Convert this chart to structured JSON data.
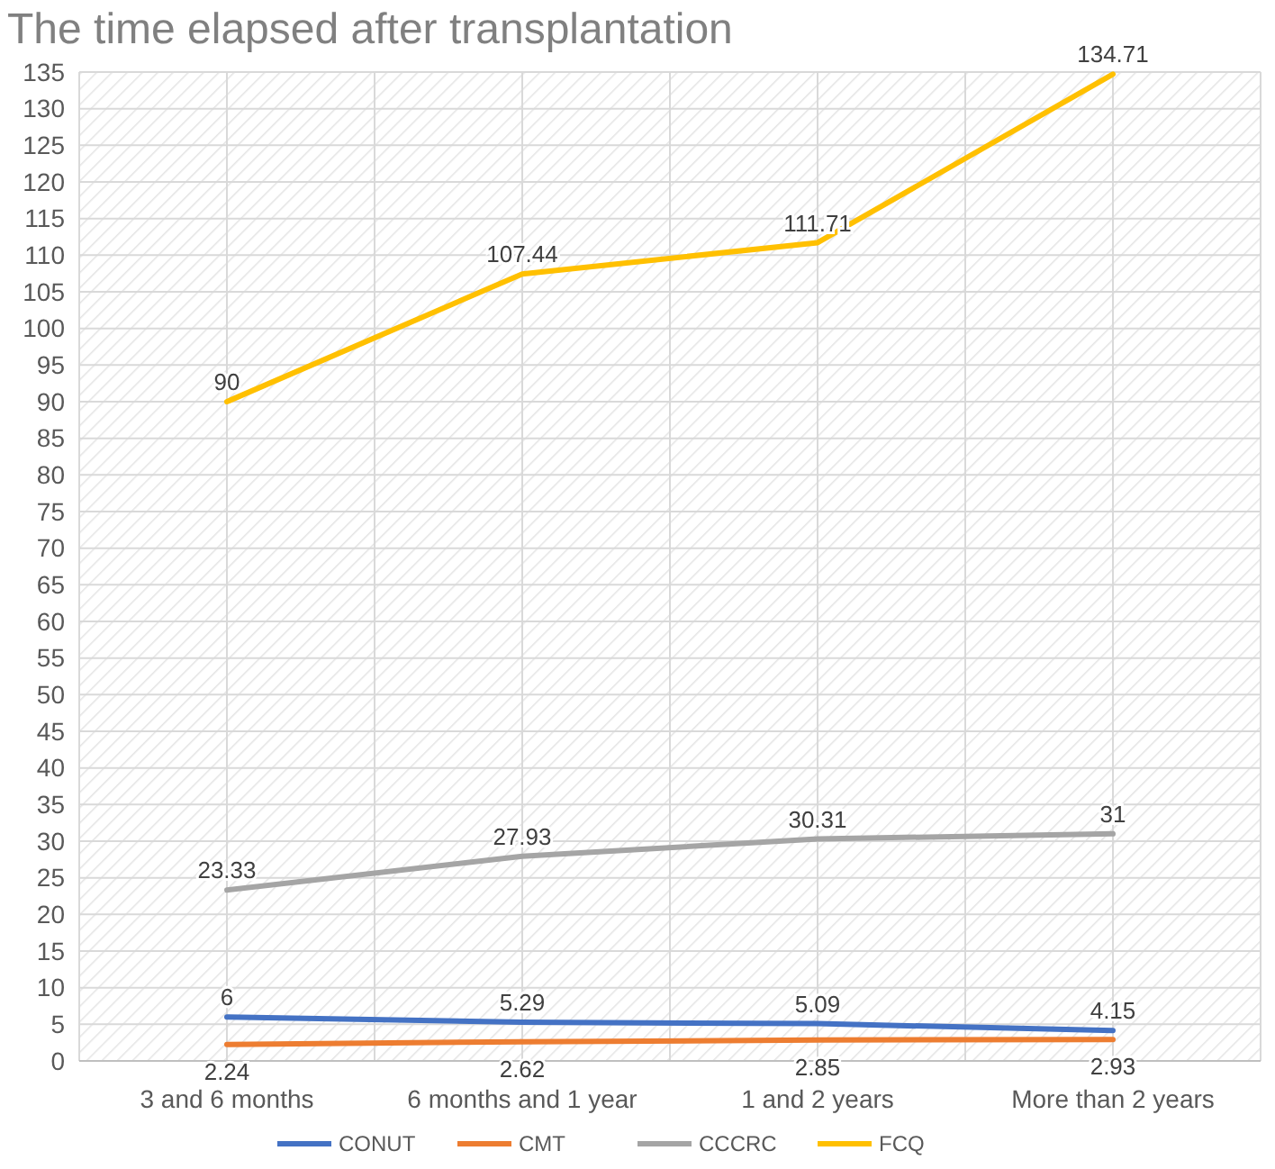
{
  "chart_data": {
    "type": "line",
    "title": "The time elapsed after transplantation",
    "categories": [
      "3 and 6 months",
      "6 months and 1 year",
      "1 and 2 years",
      "More than 2 years"
    ],
    "series": [
      {
        "name": "CONUT",
        "color": "#4472c4",
        "values": [
          6,
          5.29,
          5.09,
          4.15
        ]
      },
      {
        "name": "CMT",
        "color": "#ed7d31",
        "values": [
          2.24,
          2.62,
          2.85,
          2.93
        ]
      },
      {
        "name": "CCCRC",
        "color": "#a5a5a5",
        "values": [
          23.33,
          27.93,
          30.31,
          31
        ]
      },
      {
        "name": "FCQ",
        "color": "#ffc000",
        "values": [
          90,
          107.44,
          111.71,
          134.71
        ]
      }
    ],
    "ylim": [
      0,
      135
    ],
    "yticks": [
      0,
      5,
      10,
      15,
      20,
      25,
      30,
      35,
      40,
      45,
      50,
      55,
      60,
      65,
      70,
      75,
      80,
      85,
      90,
      95,
      100,
      105,
      110,
      115,
      120,
      125,
      130,
      135
    ],
    "grid": true,
    "legend": "bottom",
    "marker": "none",
    "line_style": "solid",
    "data_labels": true
  }
}
